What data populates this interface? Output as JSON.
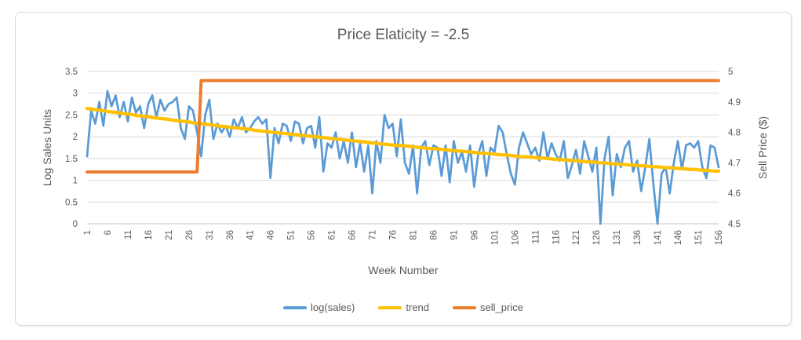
{
  "chart_data": {
    "type": "line",
    "title": "Price Elaticity = -2.5",
    "xlabel": "Week Number",
    "ylabel_left": "Log Sales Units",
    "ylabel_right": "Sell Price ($)",
    "x_range": [
      1,
      156
    ],
    "x_tick_labels": [
      1,
      6,
      11,
      16,
      21,
      26,
      31,
      36,
      41,
      46,
      51,
      56,
      61,
      66,
      71,
      76,
      81,
      86,
      91,
      96,
      101,
      106,
      111,
      116,
      121,
      126,
      131,
      136,
      141,
      146,
      151,
      156
    ],
    "ylim_left": [
      0,
      3.5
    ],
    "y_left_ticks": [
      "3.5",
      "3",
      "2.5",
      "2",
      "1.5",
      "1",
      "0.5",
      "0"
    ],
    "ylim_right": [
      4.5,
      5
    ],
    "y_right_ticks": [
      "5",
      "4.9",
      "4.8",
      "4.7",
      "4.6",
      "4.5"
    ],
    "grid": true,
    "legend_position": "bottom",
    "colors": {
      "grid": "#d9d9d9",
      "axis_line": "#c6c6c6",
      "text": "#595959"
    },
    "series": [
      {
        "name": "log(sales)",
        "color": "#5b9bd5",
        "axis": "left",
        "width": 2.75,
        "values": [
          1.55,
          2.6,
          2.3,
          2.8,
          2.25,
          3.05,
          2.7,
          2.95,
          2.45,
          2.8,
          2.35,
          2.9,
          2.55,
          2.7,
          2.2,
          2.75,
          2.95,
          2.45,
          2.85,
          2.6,
          2.75,
          2.8,
          2.9,
          2.2,
          1.95,
          2.7,
          2.6,
          2.1,
          1.55,
          2.5,
          2.85,
          1.95,
          2.3,
          2.1,
          2.25,
          2.0,
          2.4,
          2.2,
          2.45,
          2.1,
          2.2,
          2.35,
          2.45,
          2.3,
          2.4,
          1.05,
          2.2,
          1.85,
          2.3,
          2.25,
          1.9,
          2.35,
          2.3,
          1.85,
          2.2,
          2.25,
          1.75,
          2.45,
          1.2,
          1.85,
          1.75,
          2.1,
          1.5,
          1.9,
          1.4,
          2.1,
          1.3,
          1.85,
          1.2,
          1.8,
          0.7,
          1.9,
          1.4,
          2.5,
          2.2,
          2.3,
          1.55,
          2.4,
          1.4,
          1.15,
          1.8,
          0.7,
          1.75,
          1.9,
          1.35,
          1.8,
          1.75,
          1.1,
          1.8,
          0.95,
          1.9,
          1.4,
          1.65,
          1.2,
          1.8,
          0.85,
          1.6,
          1.9,
          1.1,
          1.75,
          1.65,
          2.25,
          2.1,
          1.6,
          1.15,
          0.9,
          1.75,
          2.1,
          1.85,
          1.6,
          1.75,
          1.45,
          2.1,
          1.5,
          1.85,
          1.6,
          1.45,
          1.9,
          1.05,
          1.35,
          1.7,
          1.15,
          1.9,
          1.55,
          1.2,
          1.75,
          0.0,
          1.5,
          2.0,
          0.65,
          1.6,
          1.3,
          1.75,
          1.9,
          1.2,
          1.45,
          0.75,
          1.3,
          1.95,
          0.9,
          0.0,
          1.15,
          1.3,
          0.7,
          1.4,
          1.9,
          1.25,
          1.8,
          1.85,
          1.75,
          1.9,
          1.3,
          1.05,
          1.8,
          1.75,
          1.3
        ]
      },
      {
        "name": "trend",
        "color": "#ffc000",
        "axis": "left",
        "width": 4.25,
        "values": [
          2.65,
          2.64,
          2.62,
          2.61,
          2.6,
          2.58,
          2.57,
          2.56,
          2.55,
          2.53,
          2.52,
          2.51,
          2.49,
          2.48,
          2.47,
          2.46,
          2.44,
          2.43,
          2.42,
          2.41,
          2.4,
          2.38,
          2.37,
          2.36,
          2.35,
          2.34,
          2.32,
          2.31,
          2.3,
          2.29,
          2.28,
          2.27,
          2.25,
          2.24,
          2.23,
          2.22,
          2.21,
          2.2,
          2.19,
          2.18,
          2.17,
          2.15,
          2.14,
          2.13,
          2.12,
          2.11,
          2.1,
          2.09,
          2.08,
          2.07,
          2.06,
          2.05,
          2.04,
          2.03,
          2.02,
          2.01,
          2.0,
          1.99,
          1.98,
          1.97,
          1.96,
          1.95,
          1.94,
          1.93,
          1.92,
          1.91,
          1.9,
          1.89,
          1.88,
          1.87,
          1.86,
          1.85,
          1.84,
          1.83,
          1.82,
          1.81,
          1.8,
          1.8,
          1.79,
          1.78,
          1.77,
          1.76,
          1.75,
          1.74,
          1.73,
          1.73,
          1.72,
          1.71,
          1.7,
          1.69,
          1.68,
          1.67,
          1.67,
          1.66,
          1.65,
          1.64,
          1.63,
          1.62,
          1.62,
          1.61,
          1.6,
          1.59,
          1.58,
          1.58,
          1.57,
          1.56,
          1.55,
          1.54,
          1.54,
          1.53,
          1.52,
          1.51,
          1.51,
          1.5,
          1.49,
          1.48,
          1.48,
          1.47,
          1.46,
          1.45,
          1.45,
          1.44,
          1.43,
          1.42,
          1.42,
          1.41,
          1.4,
          1.4,
          1.39,
          1.38,
          1.37,
          1.37,
          1.36,
          1.35,
          1.35,
          1.34,
          1.33,
          1.33,
          1.32,
          1.31,
          1.31,
          1.3,
          1.29,
          1.29,
          1.28,
          1.27,
          1.27,
          1.26,
          1.25,
          1.25,
          1.24,
          1.23,
          1.23,
          1.22,
          1.21,
          1.21
        ]
      },
      {
        "name": "sell_price",
        "color": "#ed7d31",
        "axis": "right",
        "width": 4,
        "values": [
          4.67,
          4.67,
          4.67,
          4.67,
          4.67,
          4.67,
          4.67,
          4.67,
          4.67,
          4.67,
          4.67,
          4.67,
          4.67,
          4.67,
          4.67,
          4.67,
          4.67,
          4.67,
          4.67,
          4.67,
          4.67,
          4.67,
          4.67,
          4.67,
          4.67,
          4.67,
          4.67,
          4.67,
          4.97,
          4.97,
          4.97,
          4.97,
          4.97,
          4.97,
          4.97,
          4.97,
          4.97,
          4.97,
          4.97,
          4.97,
          4.97,
          4.97,
          4.97,
          4.97,
          4.97,
          4.97,
          4.97,
          4.97,
          4.97,
          4.97,
          4.97,
          4.97,
          4.97,
          4.97,
          4.97,
          4.97,
          4.97,
          4.97,
          4.97,
          4.97,
          4.97,
          4.97,
          4.97,
          4.97,
          4.97,
          4.97,
          4.97,
          4.97,
          4.97,
          4.97,
          4.97,
          4.97,
          4.97,
          4.97,
          4.97,
          4.97,
          4.97,
          4.97,
          4.97,
          4.97,
          4.97,
          4.97,
          4.97,
          4.97,
          4.97,
          4.97,
          4.97,
          4.97,
          4.97,
          4.97,
          4.97,
          4.97,
          4.97,
          4.97,
          4.97,
          4.97,
          4.97,
          4.97,
          4.97,
          4.97,
          4.97,
          4.97,
          4.97,
          4.97,
          4.97,
          4.97,
          4.97,
          4.97,
          4.97,
          4.97,
          4.97,
          4.97,
          4.97,
          4.97,
          4.97,
          4.97,
          4.97,
          4.97,
          4.97,
          4.97,
          4.97,
          4.97,
          4.97,
          4.97,
          4.97,
          4.97,
          4.97,
          4.97,
          4.97,
          4.97,
          4.97,
          4.97,
          4.97,
          4.97,
          4.97,
          4.97,
          4.97,
          4.97,
          4.97,
          4.97,
          4.97,
          4.97,
          4.97,
          4.97,
          4.97,
          4.97,
          4.97,
          4.97,
          4.97,
          4.97,
          4.97,
          4.97,
          4.97,
          4.97,
          4.97,
          4.97
        ]
      }
    ]
  }
}
